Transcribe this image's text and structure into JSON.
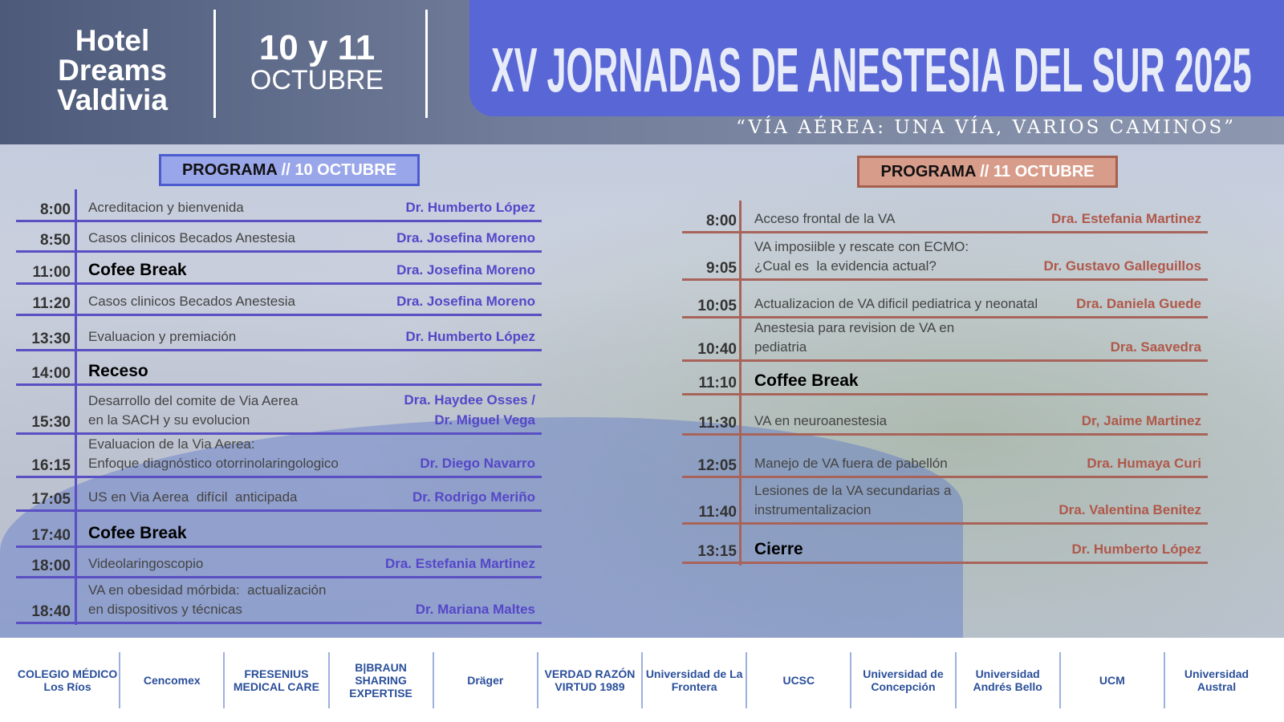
{
  "header": {
    "venue": [
      "Hotel",
      "Dreams",
      "Valdivia"
    ],
    "dates": "10 y 11",
    "month": "OCTUBRE",
    "title": "XV JORNADAS DE ANESTESIA DEL SUR 2025",
    "subtitle": "“VÍA AÉREA: UNA VÍA, VARIOS CAMINOS”"
  },
  "colors": {
    "day1_accent": "#5b4fc4",
    "day2_accent": "#a8645a",
    "title_box": "#5967d6"
  },
  "day1": {
    "label": "PROGRAMA",
    "sep": " // ",
    "date": "10 OCTUBRE",
    "rows": [
      {
        "time": "8:00",
        "title": "Acreditacion y bienvenida",
        "speaker": "Dr. Humberto López"
      },
      {
        "time": "8:50",
        "title": "Casos clinicos Becados Anestesia",
        "speaker": "Dra. Josefina Moreno"
      },
      {
        "time": "11:00",
        "title": "Cofee Break",
        "speaker": "Dra. Josefina Moreno",
        "bold": true
      },
      {
        "time": "11:20",
        "title": "Casos clinicos Becados Anestesia",
        "speaker": "Dra. Josefina Moreno"
      },
      {
        "time": "13:30",
        "title": "Evaluacion y premiación",
        "speaker": "Dr. Humberto López"
      },
      {
        "time": "14:00",
        "title": "Receso",
        "speaker": "",
        "bold": true
      },
      {
        "time": "15:30",
        "title": "Desarrollo del comite de Via Aerea\nen la SACH y su evolucion",
        "speaker": "Dra. Haydee Osses /\nDr. Miguel Vega"
      },
      {
        "time": "16:15",
        "title": "Evaluacion de la Via Aerea:\nEnfoque diagnóstico otorrinolaringologico",
        "speaker": "Dr. Diego Navarro"
      },
      {
        "time": "17:05",
        "title": "US en Via Aerea  difícil  anticipada",
        "speaker": "Dr. Rodrigo Meriño"
      },
      {
        "time": "17:40",
        "title": "Cofee Break",
        "speaker": "",
        "bold": true
      },
      {
        "time": "18:00",
        "title": "Videolaringoscopio",
        "speaker": "Dra. Estefania Martinez"
      },
      {
        "time": "18:40",
        "title": "VA en obesidad mórbida:  actualización\nen dispositivos y técnicas",
        "speaker": "Dr. Mariana Maltes"
      }
    ]
  },
  "day2": {
    "label": "PROGRAMA",
    "sep": " // ",
    "date": "11 OCTUBRE",
    "rows": [
      {
        "time": "8:00",
        "title": "Acceso frontal de la VA",
        "speaker": "Dra. Estefania Martinez"
      },
      {
        "time": "9:05",
        "title": "VA imposiible y rescate con ECMO:\n¿Cual es  la evidencia actual?",
        "speaker": "Dr. Gustavo Galleguillos"
      },
      {
        "time": "10:05",
        "title": "Actualizacion de VA dificil pediatrica y neonatal",
        "speaker": "Dra. Daniela Guede"
      },
      {
        "time": "10:40",
        "title": "Anestesia para revision de VA en\npediatria",
        "speaker": "Dra. Saavedra"
      },
      {
        "time": "11:10",
        "title": "Coffee Break",
        "speaker": "",
        "bold": true
      },
      {
        "time": "11:30",
        "title": "VA en neuroanestesia",
        "speaker": "Dr, Jaime Martinez"
      },
      {
        "time": "12:05",
        "title": "Manejo de VA fuera de pabellón",
        "speaker": "Dra. Humaya Curi"
      },
      {
        "time": "11:40",
        "title": "Lesiones de la VA secundarias a\ninstrumentalizacion",
        "speaker": "Dra. Valentina Benitez"
      },
      {
        "time": "13:15",
        "title": "Cierre",
        "speaker": "Dr. Humberto López",
        "bold": true
      }
    ]
  },
  "sponsors": [
    "COLEGIO MÉDICO Los Ríos",
    "Cencomex",
    "FRESENIUS MEDICAL CARE",
    "B|BRAUN SHARING EXPERTISE",
    "Dräger",
    "VERDAD RAZÓN VIRTUD 1989",
    "Universidad de La Frontera",
    "UCSC",
    "Universidad de Concepción",
    "Universidad Andrés Bello",
    "UCM",
    "Universidad Austral"
  ]
}
